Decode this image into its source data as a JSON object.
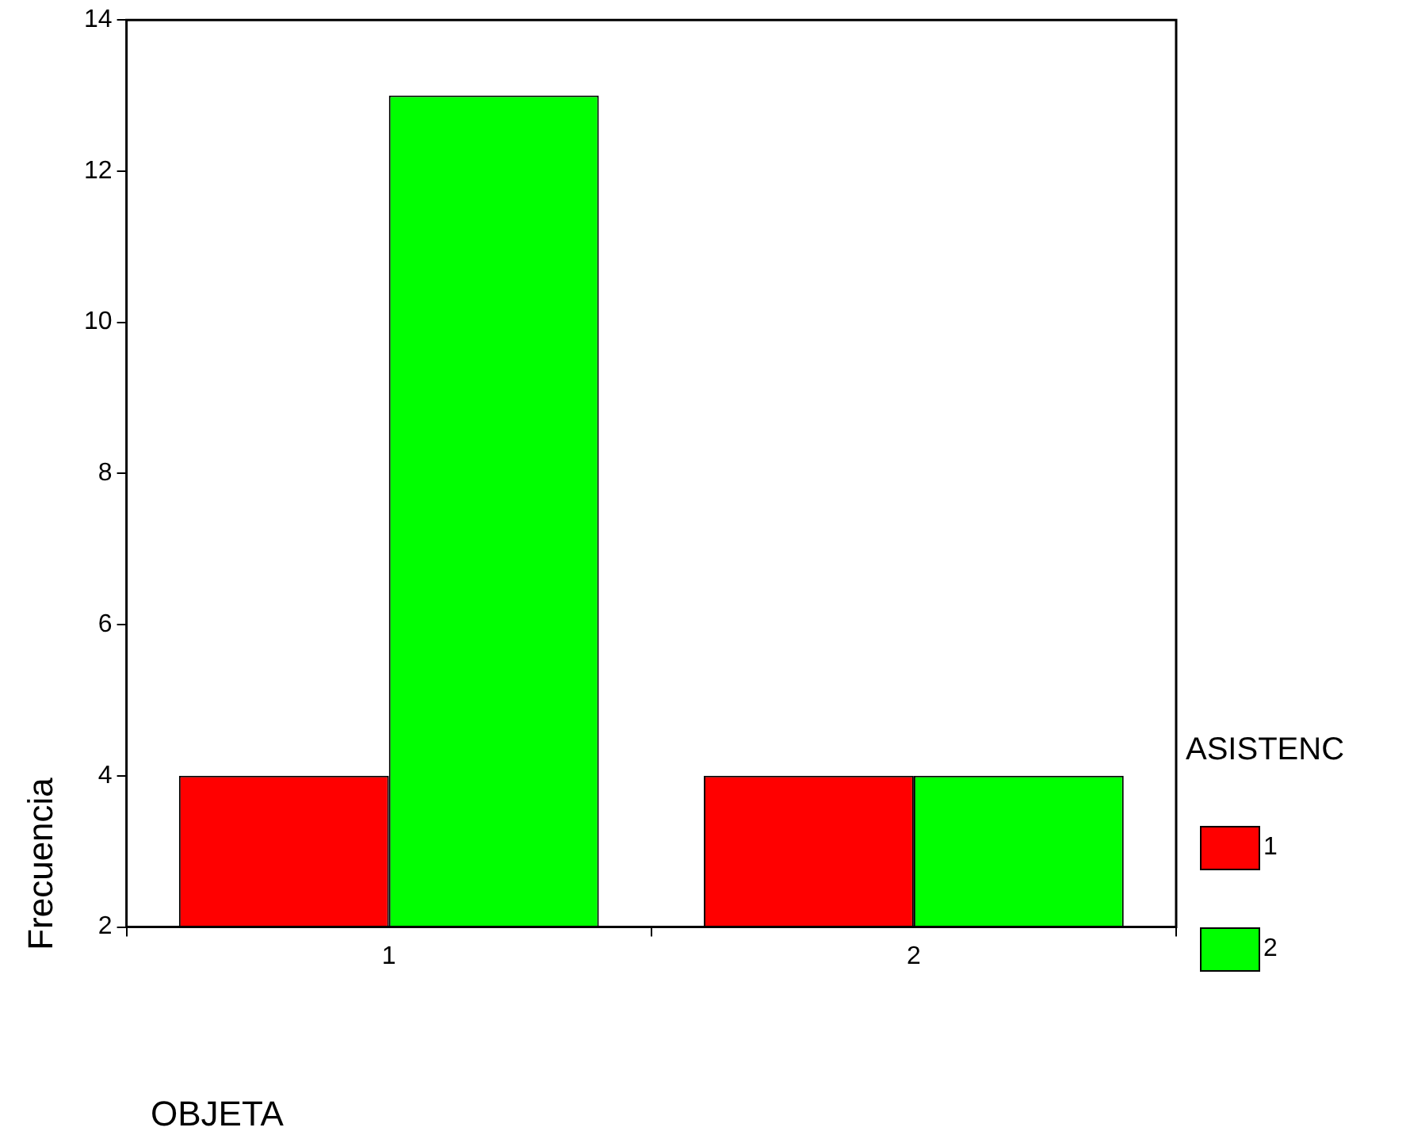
{
  "chart_data": {
    "type": "bar",
    "xlabel": "OBJETA",
    "ylabel": "Frecuencia",
    "legend_title": "ASISTENC",
    "categories": [
      "1",
      "2"
    ],
    "series": [
      {
        "name": "1",
        "color": "#ff0000",
        "values": [
          4,
          4
        ]
      },
      {
        "name": "2",
        "color": "#00ff00",
        "values": [
          13,
          4
        ]
      }
    ],
    "ylim": [
      2,
      14
    ],
    "yticks": [
      2,
      4,
      6,
      8,
      10,
      12,
      14
    ],
    "grid": false,
    "legend": "right"
  }
}
